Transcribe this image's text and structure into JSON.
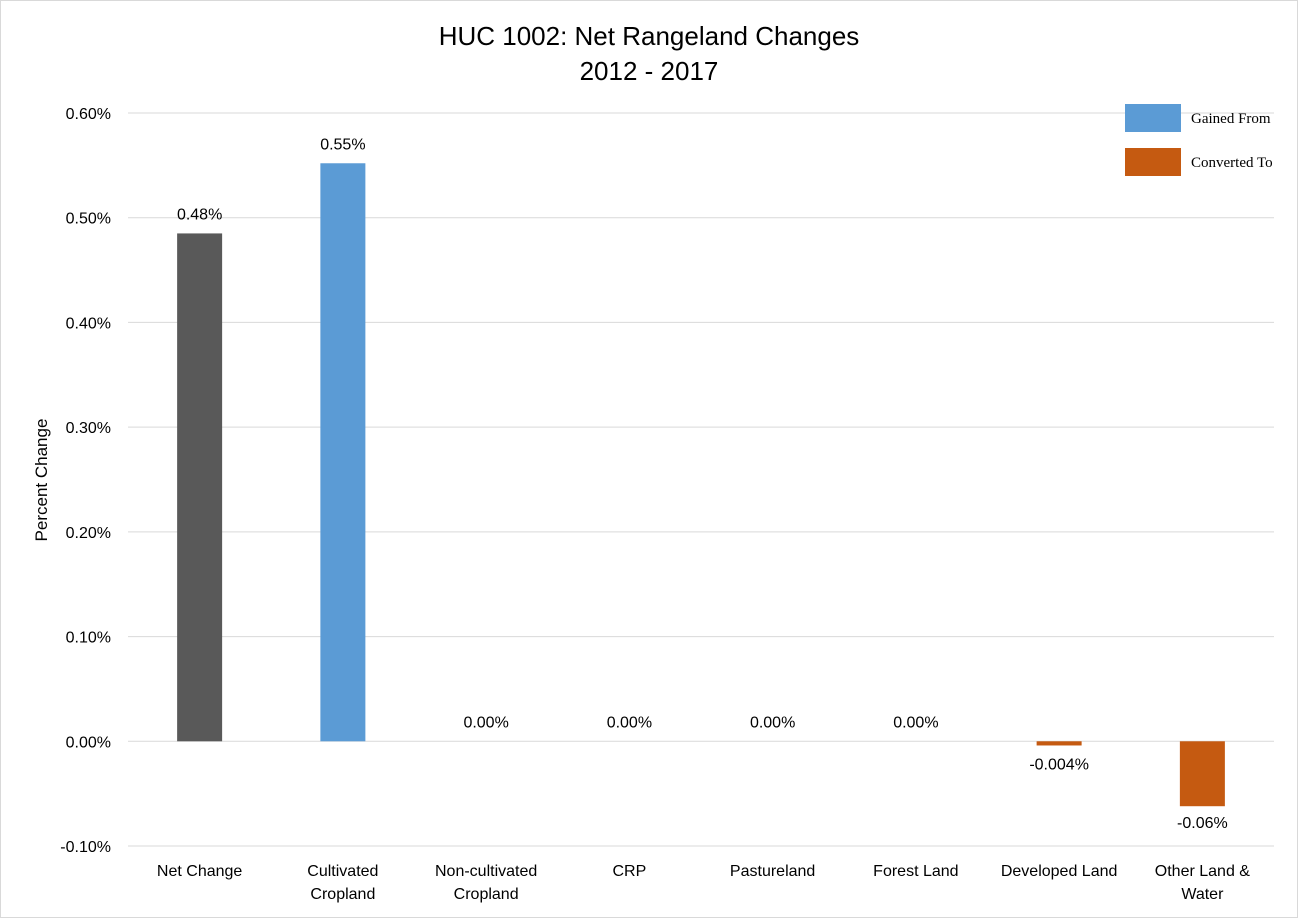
{
  "chart_data": {
    "type": "bar",
    "title": "HUC 1002: Net Rangeland Changes",
    "subtitle": "2012 - 2017",
    "ylabel": "Percent Change",
    "xlabel": "",
    "ylim": [
      -0.1,
      0.6
    ],
    "yticks": [
      -0.1,
      0.0,
      0.1,
      0.2,
      0.3,
      0.4,
      0.5,
      0.6
    ],
    "ytick_labels": [
      "-0.10%",
      "0.00%",
      "0.10%",
      "0.20%",
      "0.30%",
      "0.40%",
      "0.50%",
      "0.60%"
    ],
    "grid": true,
    "legend_position": "top-right",
    "categories": [
      [
        "Net Change"
      ],
      [
        "Cultivated",
        "Cropland"
      ],
      [
        "Non-cultivated",
        "Cropland"
      ],
      [
        "CRP"
      ],
      [
        "Pastureland"
      ],
      [
        "Forest Land"
      ],
      [
        "Developed Land"
      ],
      [
        "Other Land &",
        "Water"
      ]
    ],
    "values": [
      0.485,
      0.552,
      0.0,
      0.0,
      0.0,
      0.0,
      -0.004,
      -0.062
    ],
    "data_labels": [
      "0.48%",
      "0.55%",
      "0.00%",
      "0.00%",
      "0.00%",
      "0.00%",
      "-0.004%",
      "-0.06%"
    ],
    "bar_groups": [
      "net",
      "gained",
      "gained",
      "gained",
      "gained",
      "gained",
      "converted",
      "converted"
    ],
    "legend": [
      {
        "name": "Gained From",
        "group": "gained"
      },
      {
        "name": "Converted To",
        "group": "converted"
      }
    ],
    "colors": {
      "net": "#595959",
      "gained": "#5b9bd5",
      "converted": "#c55a11",
      "grid": "#d9d9d9"
    }
  }
}
